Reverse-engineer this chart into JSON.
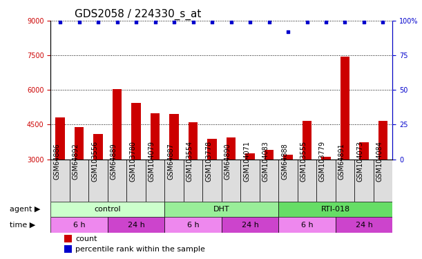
{
  "title": "GDS2058 / 224330_s_at",
  "samples": [
    "GSM64886",
    "GSM64892",
    "GSM103556",
    "GSM64889",
    "GSM103780",
    "GSM104079",
    "GSM64887",
    "GSM103554",
    "GSM103778",
    "GSM64890",
    "GSM104071",
    "GSM104083",
    "GSM64888",
    "GSM103555",
    "GSM103779",
    "GSM64891",
    "GSM104073",
    "GSM104084"
  ],
  "counts": [
    4800,
    4400,
    4100,
    6050,
    5450,
    5000,
    4950,
    4600,
    3900,
    3950,
    3250,
    3400,
    3200,
    4650,
    3100,
    7450,
    3750,
    4650
  ],
  "percentiles": [
    99,
    99,
    99,
    99,
    99,
    99,
    99,
    99,
    99,
    99,
    99,
    99,
    92,
    99,
    99,
    99,
    99,
    99
  ],
  "ylim_left": [
    3000,
    9000
  ],
  "ylim_right": [
    0,
    100
  ],
  "yticks_left": [
    3000,
    4500,
    6000,
    7500,
    9000
  ],
  "yticks_right": [
    0,
    25,
    50,
    75,
    100
  ],
  "agent_groups": [
    {
      "label": "control",
      "start": 0,
      "end": 6,
      "color": "#CCFFCC"
    },
    {
      "label": "DHT",
      "start": 6,
      "end": 12,
      "color": "#99EE99"
    },
    {
      "label": "RTI-018",
      "start": 12,
      "end": 18,
      "color": "#66DD66"
    }
  ],
  "time_groups": [
    {
      "label": "6 h",
      "start": 0,
      "end": 3,
      "color": "#EE88EE"
    },
    {
      "label": "24 h",
      "start": 3,
      "end": 6,
      "color": "#CC44CC"
    },
    {
      "label": "6 h",
      "start": 6,
      "end": 9,
      "color": "#EE88EE"
    },
    {
      "label": "24 h",
      "start": 9,
      "end": 12,
      "color": "#CC44CC"
    },
    {
      "label": "6 h",
      "start": 12,
      "end": 15,
      "color": "#EE88EE"
    },
    {
      "label": "24 h",
      "start": 15,
      "end": 18,
      "color": "#CC44CC"
    }
  ],
  "bar_color": "#CC0000",
  "dot_color": "#0000CC",
  "background_color": "#FFFFFF",
  "tick_label_bg": "#DDDDDD",
  "legend_count_color": "#CC0000",
  "legend_pct_color": "#0000CC",
  "title_fontsize": 11,
  "tick_fontsize": 7,
  "label_fontsize": 8,
  "annot_fontsize": 8
}
